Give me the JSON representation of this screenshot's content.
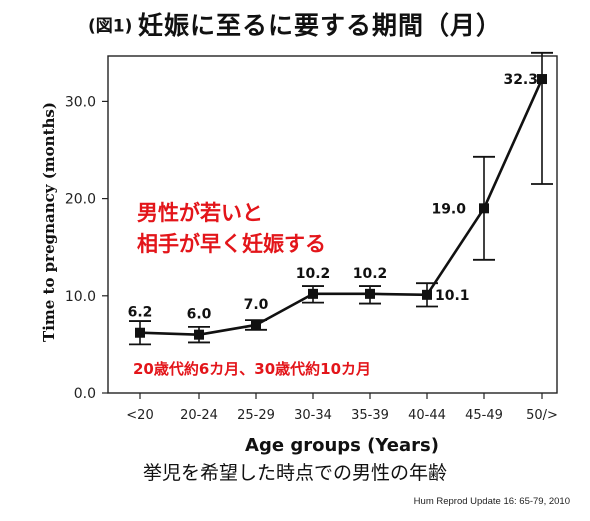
{
  "title_num": "(図1)",
  "title": "妊娠に至るに要する期間（月）",
  "x_sublabel": "挙児を希望した時点での男性の年齢",
  "citation": "Hum Reprod Update 16: 65-79, 2010",
  "colors": {
    "annotation": "#e3151a",
    "line": "#111111",
    "axis": "#222222"
  },
  "chart_data": {
    "type": "line",
    "categories": [
      "<20",
      "20-24",
      "25-29",
      "30-34",
      "35-39",
      "40-44",
      "45-49",
      "50/>"
    ],
    "values": [
      6.2,
      6.0,
      7.0,
      10.2,
      10.2,
      10.1,
      19.0,
      32.3
    ],
    "data_labels": [
      "6.2",
      "6.0",
      "7.0",
      "10.2",
      "10.2",
      "10.1",
      "19.0",
      "32.3"
    ],
    "error_low": [
      5.0,
      5.2,
      6.5,
      9.3,
      9.2,
      8.9,
      13.7,
      21.5
    ],
    "error_high": [
      7.4,
      6.8,
      7.5,
      11.0,
      11.0,
      11.3,
      24.3,
      35.0
    ],
    "xlabel": "Age groups (Years)",
    "ylabel": "Time to pregnancy (months)",
    "ylim": [
      0,
      35
    ],
    "yticks": [
      0,
      10,
      20,
      30
    ],
    "ytick_labels": [
      "0.0",
      "10.0",
      "20.0",
      "30.0"
    ],
    "grid": false,
    "annotations": [
      {
        "text": "男性が若いと"
      },
      {
        "text": "相手が早く妊娠する"
      },
      {
        "text": "20歳代約6カ月、30歳代約10カ月"
      }
    ]
  }
}
